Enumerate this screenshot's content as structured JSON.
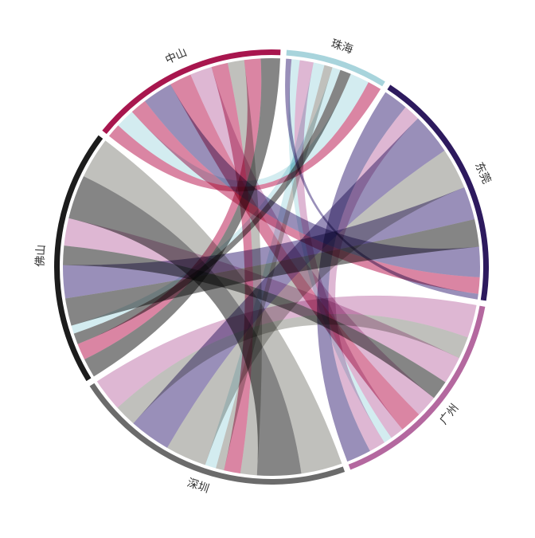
{
  "chart_data": {
    "type": "chord",
    "title": "",
    "groups": [
      {
        "name": "珠海",
        "color": "#a8d4dc"
      },
      {
        "name": "东莞",
        "color": "#2d1a5e"
      },
      {
        "name": "广州",
        "color": "#b4689f"
      },
      {
        "name": "深圳",
        "color": "#6b6b6b"
      },
      {
        "name": "佛山",
        "color": "#1c1c1c"
      },
      {
        "name": "中山",
        "color": "#a8164e"
      }
    ],
    "ribbon_colors": {
      "珠海": "#b8e0e6",
      "东莞": "#5a4a8e",
      "广州": "#c98ab8",
      "深圳": "#9a9a93",
      "佛山": "#3a3a3a",
      "中山": "#c43a6a"
    },
    "matrix_rows": [
      "珠海",
      "东莞",
      "广州",
      "深圳",
      "佛山",
      "中山"
    ],
    "matrix": [
      [
        0,
        0,
        3,
        4,
        3,
        7
      ],
      [
        2,
        0,
        9,
        15,
        12,
        11
      ],
      [
        5,
        6,
        0,
        12,
        10,
        8
      ],
      [
        3,
        15,
        8,
        0,
        15,
        6
      ],
      [
        4,
        10,
        7,
        16,
        0,
        7
      ],
      [
        5,
        6,
        8,
        6,
        6,
        0
      ]
    ]
  }
}
